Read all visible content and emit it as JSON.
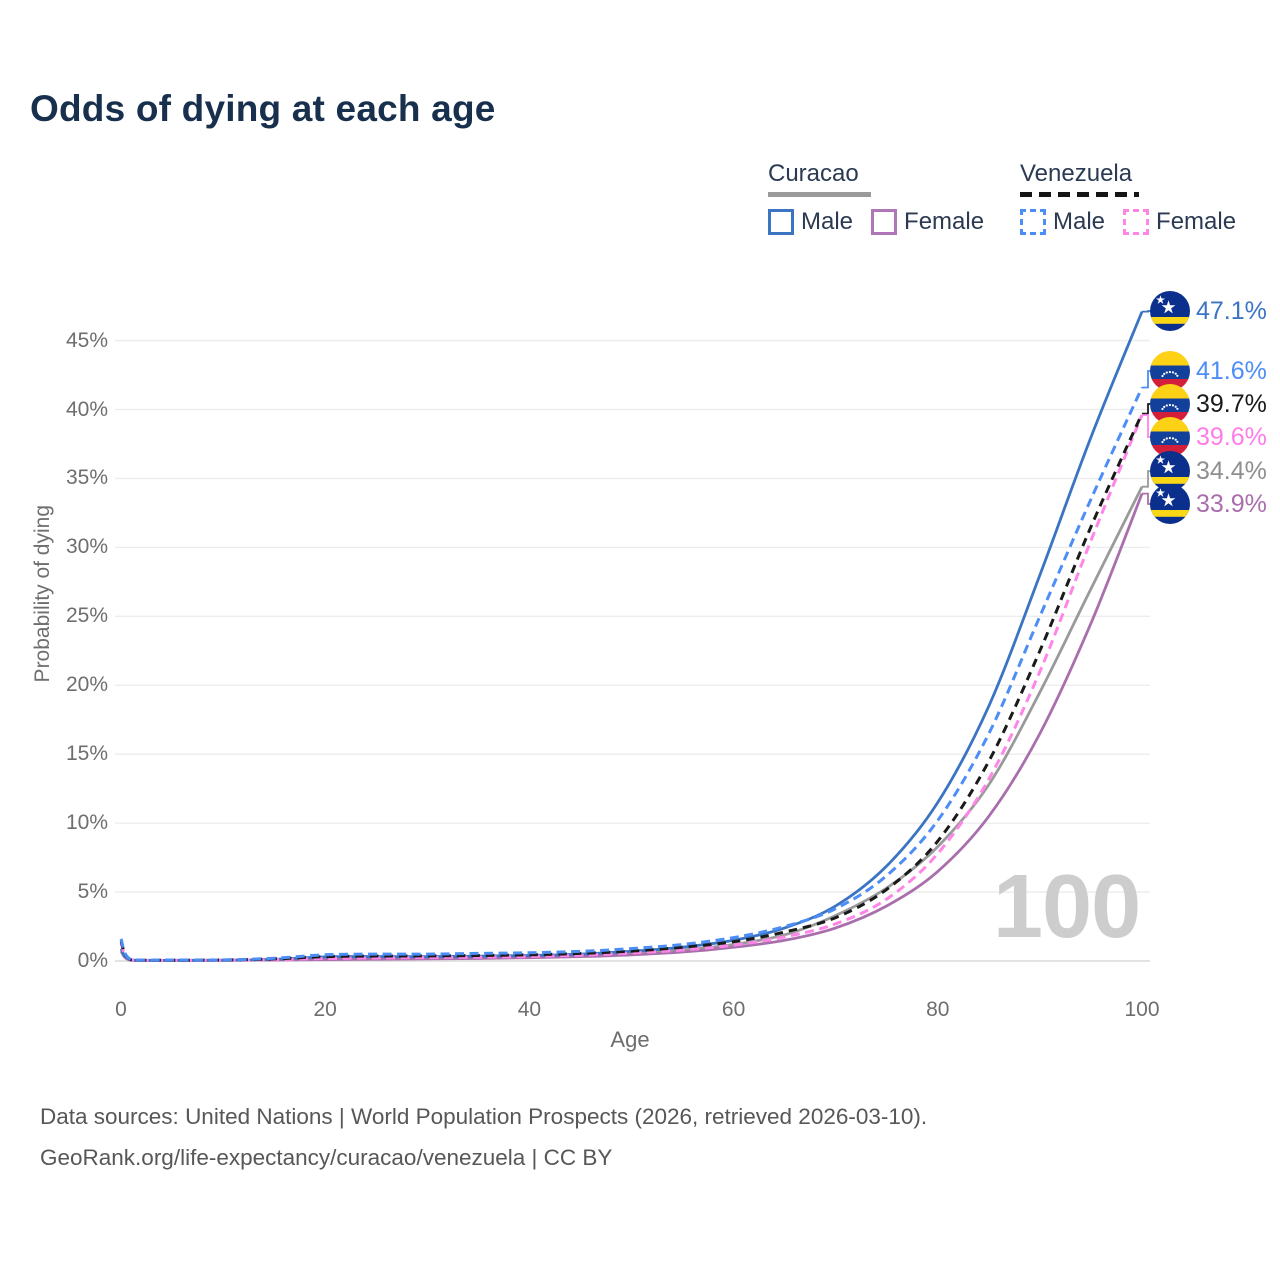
{
  "title": "Odds of dying at each age",
  "legend": {
    "groups": [
      {
        "header": "Curacao",
        "line_style": "solid",
        "line_color": "#9a9a9a",
        "items": [
          {
            "label": "Male",
            "color": "#3c74c4",
            "style": "solid"
          },
          {
            "label": "Female",
            "color": "#b077b8",
            "style": "solid"
          }
        ]
      },
      {
        "header": "Venezuela",
        "line_style": "dashed",
        "line_color": "#141414",
        "items": [
          {
            "label": "Male",
            "color": "#4c8df6",
            "style": "dashed"
          },
          {
            "label": "Female",
            "color": "#ff85e9",
            "style": "dashed"
          }
        ]
      }
    ]
  },
  "chart_data": {
    "type": "line",
    "title": "Odds of dying at each age",
    "xlabel": "Age",
    "ylabel": "Probability of dying",
    "xlim": [
      0,
      100
    ],
    "ylim_percent": [
      0,
      47.5
    ],
    "x_ticks": [
      0,
      20,
      40,
      60,
      80,
      100
    ],
    "y_ticks_percent": [
      0,
      5,
      10,
      15,
      20,
      25,
      30,
      35,
      40,
      45
    ],
    "grid": "horizontal-only",
    "watermark": "100",
    "x_ages": [
      0,
      1,
      5,
      10,
      15,
      20,
      25,
      30,
      35,
      40,
      45,
      50,
      55,
      60,
      65,
      70,
      75,
      80,
      85,
      90,
      95,
      100
    ],
    "series": [
      {
        "name": "Curacao Male",
        "country": "Curacao",
        "sex": "Male",
        "style": "solid",
        "color": "#3c74c4",
        "label_color": "#3c74c4",
        "flag": "curacao",
        "end_label": "47.1%",
        "values_percent": [
          0.9,
          0.07,
          0.05,
          0.06,
          0.12,
          0.3,
          0.32,
          0.32,
          0.35,
          0.4,
          0.5,
          0.7,
          1.0,
          1.5,
          2.4,
          4.0,
          6.9,
          11.5,
          18.5,
          28.0,
          38.0,
          47.1
        ]
      },
      {
        "name": "Venezuela Male",
        "country": "Venezuela",
        "sex": "Male",
        "style": "dashed",
        "color": "#4c8df6",
        "label_color": "#4c8df6",
        "flag": "venezuela",
        "end_label": "41.6%",
        "values_percent": [
          1.6,
          0.1,
          0.07,
          0.08,
          0.2,
          0.45,
          0.5,
          0.5,
          0.55,
          0.6,
          0.7,
          0.9,
          1.2,
          1.7,
          2.5,
          3.8,
          6.2,
          10.2,
          16.5,
          25.0,
          33.5,
          41.6
        ]
      },
      {
        "name": "Venezuela Both sexes",
        "country": "Venezuela",
        "sex": "Both",
        "style": "dashed",
        "color": "#1a1a1a",
        "label_color": "#1a1a1a",
        "flag": "venezuela",
        "end_label": "39.7%",
        "values_percent": [
          1.45,
          0.09,
          0.06,
          0.07,
          0.15,
          0.32,
          0.36,
          0.37,
          0.4,
          0.45,
          0.55,
          0.72,
          1.0,
          1.4,
          2.1,
          3.15,
          5.2,
          8.7,
          14.5,
          22.5,
          31.5,
          39.7
        ]
      },
      {
        "name": "Venezuela Female",
        "country": "Venezuela",
        "sex": "Female",
        "style": "dashed",
        "color": "#ff85e9",
        "label_color": "#ff7ce8",
        "flag": "venezuela",
        "end_label": "39.6%",
        "values_percent": [
          1.3,
          0.08,
          0.05,
          0.06,
          0.1,
          0.18,
          0.22,
          0.25,
          0.28,
          0.33,
          0.42,
          0.58,
          0.8,
          1.15,
          1.75,
          2.7,
          4.5,
          7.8,
          13.2,
          21.0,
          30.5,
          39.6
        ]
      },
      {
        "name": "Curacao Both sexes",
        "country": "Curacao",
        "sex": "Both",
        "style": "solid",
        "color": "#9a9a9a",
        "label_color": "#8f8f8f",
        "flag": "curacao",
        "end_label": "34.4%",
        "values_percent": [
          0.8,
          0.06,
          0.04,
          0.05,
          0.09,
          0.2,
          0.22,
          0.22,
          0.25,
          0.3,
          0.4,
          0.55,
          0.8,
          1.2,
          1.9,
          3.3,
          5.3,
          8.3,
          12.8,
          19.5,
          27.0,
          34.4
        ]
      },
      {
        "name": "Curacao Female",
        "country": "Curacao",
        "sex": "Female",
        "style": "solid",
        "color": "#a96fad",
        "label_color": "#a96fad",
        "flag": "curacao",
        "end_label": "33.9%",
        "values_percent": [
          0.7,
          0.05,
          0.03,
          0.04,
          0.07,
          0.1,
          0.13,
          0.15,
          0.18,
          0.24,
          0.32,
          0.45,
          0.65,
          1.0,
          1.5,
          2.4,
          4.0,
          6.5,
          10.5,
          16.5,
          24.5,
          33.9
        ]
      }
    ]
  },
  "footer": {
    "line1": "Data sources: United Nations | World Population Prospects (2026, retrieved 2026-03-10).",
    "line2": "GeoRank.org/life-expectancy/curacao/venezuela | CC BY"
  },
  "watermark": "100"
}
